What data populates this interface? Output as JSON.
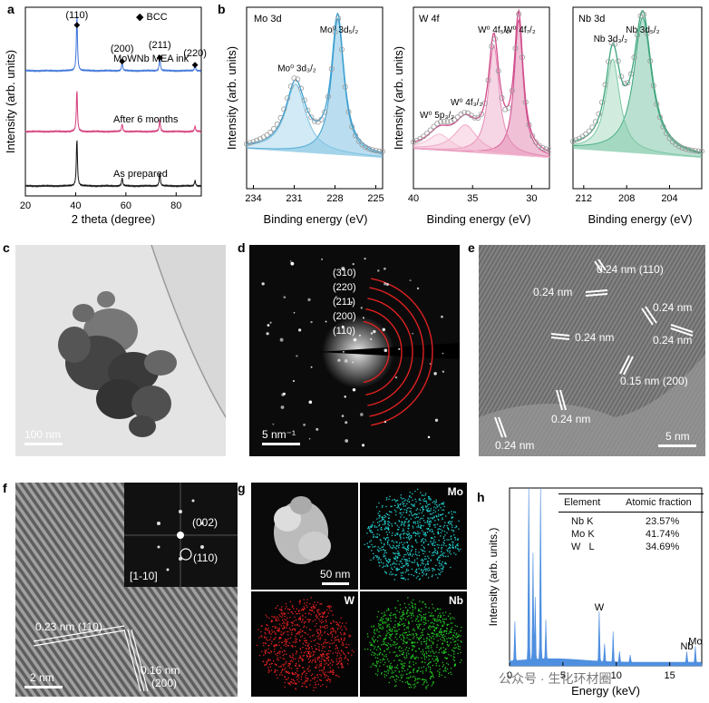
{
  "panel_labels": {
    "a": "a",
    "b": "b",
    "c": "c",
    "d": "d",
    "e": "e",
    "f": "f",
    "g": "g",
    "h": "h"
  },
  "colors": {
    "mo": "#3a9fd0",
    "w": "#d04a8a",
    "nb": "#3aa57a",
    "blue_line": "#3b73d9",
    "pink_line": "#d43c7c",
    "black_line": "#111111",
    "edx": "#4f8fe0",
    "ring": "#e02020"
  },
  "chart_data": [
    {
      "id": "a",
      "type": "line",
      "xlabel": "2 theta (degree)",
      "ylabel": "Intensity (arb. units)",
      "xlim": [
        20,
        90
      ],
      "xticks": [
        20,
        40,
        60,
        80
      ],
      "legend": "BCC",
      "peaks": [
        {
          "label": "(110)",
          "x": 40.5
        },
        {
          "label": "(200)",
          "x": 58.5
        },
        {
          "label": "(211)",
          "x": 73.5
        },
        {
          "label": "(220)",
          "x": 87.5
        }
      ],
      "series": [
        {
          "name": "MoWNb MEA ink",
          "offset": 2,
          "peaks": [
            [
              40.5,
              1.0
            ],
            [
              58.5,
              0.15
            ],
            [
              73.5,
              0.25
            ],
            [
              87.5,
              0.1
            ]
          ]
        },
        {
          "name": "After 6 months",
          "offset": 1,
          "peaks": [
            [
              40.5,
              0.75
            ],
            [
              58.5,
              0.14
            ],
            [
              73.5,
              0.22
            ],
            [
              87.5,
              0.1
            ]
          ]
        },
        {
          "name": "As prepared",
          "offset": 0,
          "peaks": [
            [
              40.5,
              0.85
            ],
            [
              58.5,
              0.15
            ],
            [
              73.5,
              0.24
            ],
            [
              87.5,
              0.1
            ]
          ]
        }
      ]
    },
    {
      "id": "b1",
      "type": "line",
      "title": "Mo 3d",
      "xlabel": "Binding energy (eV)",
      "ylabel": "Intensity (arb. units)",
      "xlim": [
        234.5,
        224.5
      ],
      "xticks": [
        234,
        231,
        228,
        225
      ],
      "annotations": [
        {
          "text": "Mo⁰ 3d₅/₂",
          "x": 227.7
        },
        {
          "text": "Mo⁰ 3d₃/₂",
          "x": 230.8
        }
      ],
      "components": [
        [
          227.8,
          1.0,
          0.55
        ],
        [
          230.9,
          0.5,
          0.9
        ]
      ]
    },
    {
      "id": "b2",
      "type": "line",
      "title": "W 4f",
      "xlabel": "Binding energy (eV)",
      "ylabel": "Intensity (arb. units)",
      "xlim": [
        40,
        28.5
      ],
      "xticks": [
        40,
        35,
        30
      ],
      "annotations": [
        {
          "text": "W⁰ 4f₇/₂",
          "x": 31
        },
        {
          "text": "W⁰ 4f₅/₂",
          "x": 33.2
        },
        {
          "text": "W⁰ 4f₃/₂",
          "x": 35.5
        },
        {
          "text": "W⁰ 5p₃/₂",
          "x": 38
        }
      ],
      "components": [
        [
          31.1,
          1.0,
          0.45
        ],
        [
          33.2,
          0.8,
          0.55
        ],
        [
          35.6,
          0.2,
          1.2
        ],
        [
          37.8,
          0.12,
          1.2
        ]
      ]
    },
    {
      "id": "b3",
      "type": "line",
      "title": "Nb 3d",
      "xlabel": "Binding energy (eV)",
      "ylabel": "",
      "xlim": [
        213,
        201
      ],
      "xticks": [
        212,
        208,
        204
      ],
      "annotations": [
        {
          "text": "Nb 3d₅/₂",
          "x": 206.5
        },
        {
          "text": "Nb 3d₃/₂",
          "x": 209.5
        }
      ],
      "components": [
        [
          206.5,
          1.0,
          1.0
        ],
        [
          209.3,
          0.68,
          0.8
        ]
      ]
    },
    {
      "id": "h",
      "type": "bar",
      "xlabel": "Energy (keV)",
      "ylabel": "Intensity (arb. units.)",
      "xlim": [
        0,
        18
      ],
      "xticks": [
        0,
        5,
        10,
        15
      ],
      "peak_labels": [
        {
          "text": "W",
          "x": 8.4
        },
        {
          "text": "Nb",
          "x": 16.6
        },
        {
          "text": "Mo",
          "x": 17.4
        }
      ],
      "lines": [
        [
          0.5,
          0.22
        ],
        [
          1.8,
          1.0
        ],
        [
          2.2,
          0.6
        ],
        [
          2.4,
          0.35
        ],
        [
          2.9,
          1.02
        ],
        [
          3.4,
          0.22
        ],
        [
          8.4,
          0.28
        ],
        [
          8.9,
          0.1
        ],
        [
          9.7,
          0.17
        ],
        [
          10.3,
          0.06
        ],
        [
          11.3,
          0.04
        ],
        [
          16.6,
          0.06
        ],
        [
          17.4,
          0.09
        ]
      ]
    }
  ],
  "table": {
    "headers": [
      "Element",
      "Atomic fraction"
    ],
    "rows": [
      [
        "Nb K",
        "23.57%"
      ],
      [
        "Mo K",
        "41.74%"
      ],
      [
        "W   L",
        "34.69%"
      ]
    ]
  },
  "panel_c": {
    "scale": "100 nm"
  },
  "panel_d": {
    "scale": "5 nm⁻¹",
    "rings": [
      "(310)",
      "(220)",
      "(211)",
      "(200)",
      "(110)"
    ]
  },
  "panel_e": {
    "scale": "5 nm",
    "labels": [
      "0.24 nm (110)",
      "0.24 nm",
      "0.24 nm",
      "0.24 nm",
      "0.24 nm",
      "0.15 nm (200)",
      "0.24 nm",
      "0.24 nm"
    ]
  },
  "panel_f": {
    "scale": "2 nm",
    "inset": [
      "(002)",
      "(110)",
      "[1-10]"
    ],
    "labels": [
      "0.23 nm (110)",
      "0.16 nm",
      "(200)"
    ]
  },
  "panel_g": {
    "scale": "50 nm",
    "maps": [
      "Mo",
      "W",
      "Nb"
    ]
  },
  "watermark": "公众号 · 生化环材圈"
}
